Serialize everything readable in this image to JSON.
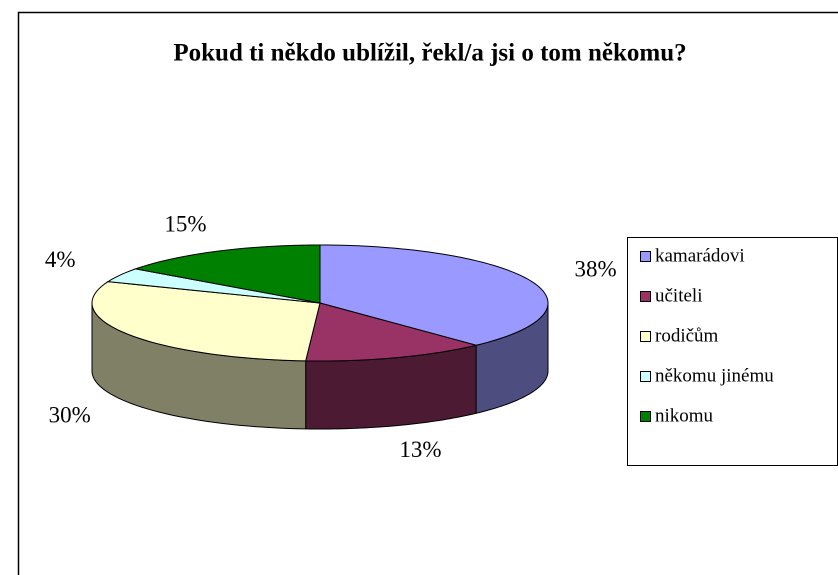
{
  "chart_data": {
    "type": "pie",
    "title": "Pokud ti někdo ublížil, řekl/a jsi o tom někomu?",
    "categories": [
      "kamarádovi",
      "učiteli",
      "rodičům",
      "někomu jinému",
      "nikomu"
    ],
    "values": [
      38,
      13,
      30,
      4,
      15
    ],
    "value_labels": [
      "38%",
      "13%",
      "30%",
      "4%",
      "15%"
    ],
    "colors": [
      "#9999ff",
      "#993366",
      "#ffffcc",
      "#ccffff",
      "#008000"
    ],
    "legend": "right"
  }
}
